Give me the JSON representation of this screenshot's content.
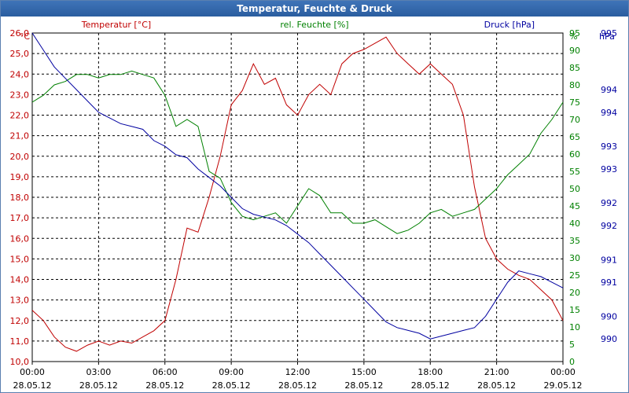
{
  "window": {
    "title": "Temperatur, Feuchte & Druck"
  },
  "chart_data": {
    "type": "line",
    "title": "Temperatur, Feuchte & Druck",
    "grid": true,
    "colors": {
      "temperature": "#c00000",
      "humidity": "#008000",
      "pressure": "#0000a0",
      "grid": "#000000"
    },
    "axes": {
      "temperature": {
        "unit": "°C",
        "range": [
          10.0,
          26.0
        ],
        "ticks": [
          "10,0",
          "11,0",
          "12,0",
          "13,0",
          "14,0",
          "15,0",
          "16,0",
          "17,0",
          "18,0",
          "19,0",
          "20,0",
          "21,0",
          "22,0",
          "23,0",
          "24,0",
          "25,0",
          "26,0"
        ]
      },
      "humidity": {
        "unit": "%",
        "range": [
          0,
          95
        ],
        "ticks": [
          "0",
          "5",
          "10",
          "15",
          "20",
          "25",
          "30",
          "35",
          "40",
          "45",
          "50",
          "55",
          "60",
          "65",
          "70",
          "75",
          "80",
          "85",
          "90",
          "95"
        ]
      },
      "pressure": {
        "unit": "hPa",
        "range": [
          989.2,
          995.0
        ],
        "ticks": [
          {
            "v": 995.0,
            "label": "995"
          },
          {
            "v": 994.0,
            "label": "994"
          },
          {
            "v": 993.6,
            "label": "994"
          },
          {
            "v": 993.0,
            "label": "993"
          },
          {
            "v": 992.6,
            "label": "993"
          },
          {
            "v": 992.0,
            "label": "992"
          },
          {
            "v": 991.6,
            "label": "992"
          },
          {
            "v": 991.0,
            "label": "991"
          },
          {
            "v": 990.6,
            "label": "991"
          },
          {
            "v": 990.0,
            "label": "990"
          },
          {
            "v": 989.6,
            "label": "990"
          }
        ]
      }
    },
    "x_ticks": [
      {
        "time": "00:00",
        "date": "28.05.12"
      },
      {
        "time": "03:00",
        "date": "28.05.12"
      },
      {
        "time": "06:00",
        "date": "28.05.12"
      },
      {
        "time": "09:00",
        "date": "28.05.12"
      },
      {
        "time": "12:00",
        "date": "28.05.12"
      },
      {
        "time": "15:00",
        "date": "28.05.12"
      },
      {
        "time": "18:00",
        "date": "28.05.12"
      },
      {
        "time": "21:00",
        "date": "28.05.12"
      },
      {
        "time": "00:00",
        "date": "29.05.12"
      }
    ],
    "series": [
      {
        "name": "Temperatur [°C]",
        "axis": "temperature",
        "x": [
          0,
          0.5,
          1,
          1.5,
          2,
          2.5,
          3,
          3.5,
          4,
          4.5,
          5,
          5.5,
          6,
          6.5,
          7,
          7.5,
          8,
          8.5,
          9,
          9.5,
          10,
          10.5,
          11,
          11.5,
          12,
          12.5,
          13,
          13.5,
          14,
          14.5,
          15,
          15.5,
          16,
          16.5,
          17,
          17.5,
          18,
          18.5,
          19,
          19.5,
          20,
          20.5,
          21,
          21.5,
          22,
          22.5,
          23,
          23.5,
          24
        ],
        "y": [
          12.5,
          12.0,
          11.2,
          10.7,
          10.5,
          10.8,
          11.0,
          10.8,
          11.0,
          10.9,
          11.2,
          11.5,
          12.0,
          14.0,
          16.5,
          16.3,
          18.0,
          20.0,
          22.5,
          23.2,
          24.5,
          23.5,
          23.8,
          22.5,
          22.0,
          23.0,
          23.5,
          23.0,
          24.5,
          25.0,
          25.2,
          25.5,
          25.8,
          25.0,
          24.5,
          24.0,
          24.5,
          24.0,
          23.5,
          22.0,
          18.5,
          16.0,
          15.0,
          14.5,
          14.2,
          14.0,
          13.5,
          13.0,
          12.0
        ]
      },
      {
        "name": "rel. Feuchte [%]",
        "axis": "humidity",
        "x": [
          0,
          0.5,
          1,
          1.5,
          2,
          2.5,
          3,
          3.5,
          4,
          4.5,
          5,
          5.5,
          6,
          6.5,
          7,
          7.5,
          8,
          8.5,
          9,
          9.5,
          10,
          10.5,
          11,
          11.5,
          12,
          12.5,
          13,
          13.5,
          14,
          14.5,
          15,
          15.5,
          16,
          16.5,
          17,
          17.5,
          18,
          18.5,
          19,
          19.5,
          20,
          20.5,
          21,
          21.5,
          22,
          22.5,
          23,
          23.5,
          24
        ],
        "y": [
          75,
          77,
          80,
          81,
          83,
          83,
          82,
          83,
          83,
          84,
          83,
          82,
          77,
          68,
          70,
          68,
          55,
          53,
          46,
          42,
          41,
          42,
          43,
          40,
          45,
          50,
          48,
          43,
          43,
          40,
          40,
          41,
          39,
          37,
          38,
          40,
          43,
          44,
          42,
          43,
          44,
          47,
          50,
          54,
          57,
          60,
          66,
          70,
          75
        ]
      },
      {
        "name": "Druck [hPa]",
        "axis": "pressure",
        "x": [
          0,
          0.5,
          1,
          1.5,
          2,
          2.5,
          3,
          3.5,
          4,
          4.5,
          5,
          5.5,
          6,
          6.5,
          7,
          7.5,
          8,
          8.5,
          9,
          9.5,
          10,
          10.5,
          11,
          11.5,
          12,
          12.5,
          13,
          13.5,
          14,
          14.5,
          15,
          15.5,
          16,
          16.5,
          17,
          17.5,
          18,
          18.5,
          19,
          19.5,
          20,
          20.5,
          21,
          21.5,
          22,
          22.5,
          23,
          23.5,
          24
        ],
        "y": [
          995.0,
          994.7,
          994.4,
          994.2,
          994.0,
          993.8,
          993.6,
          993.5,
          993.4,
          993.35,
          993.3,
          993.1,
          993.0,
          992.85,
          992.8,
          992.6,
          992.45,
          992.3,
          992.1,
          991.9,
          991.8,
          991.75,
          991.7,
          991.6,
          991.45,
          991.3,
          991.1,
          990.9,
          990.7,
          990.5,
          990.3,
          990.1,
          989.9,
          989.8,
          989.75,
          989.7,
          989.6,
          989.65,
          989.7,
          989.75,
          989.8,
          990.0,
          990.3,
          990.6,
          990.8,
          990.75,
          990.7,
          990.6,
          990.5
        ]
      }
    ]
  }
}
